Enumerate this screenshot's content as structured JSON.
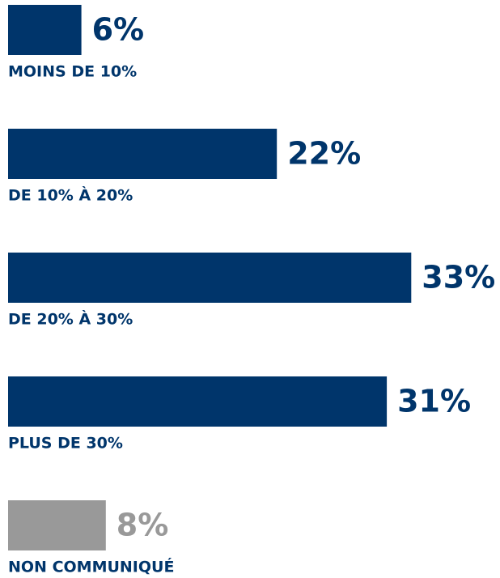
{
  "chart_data": {
    "type": "bar",
    "orientation": "horizontal",
    "categories": [
      "MOINS DE 10%",
      "DE 10% À 20%",
      "DE 20% À 30%",
      "PLUS DE 30%",
      "NON COMMUNIQUÉ"
    ],
    "values": [
      6,
      22,
      33,
      31,
      8
    ],
    "value_labels": [
      "6%",
      "22%",
      "33%",
      "31%",
      "8%"
    ],
    "colors": [
      "#00356b",
      "#00356b",
      "#00356b",
      "#00356b",
      "#999999"
    ]
  }
}
